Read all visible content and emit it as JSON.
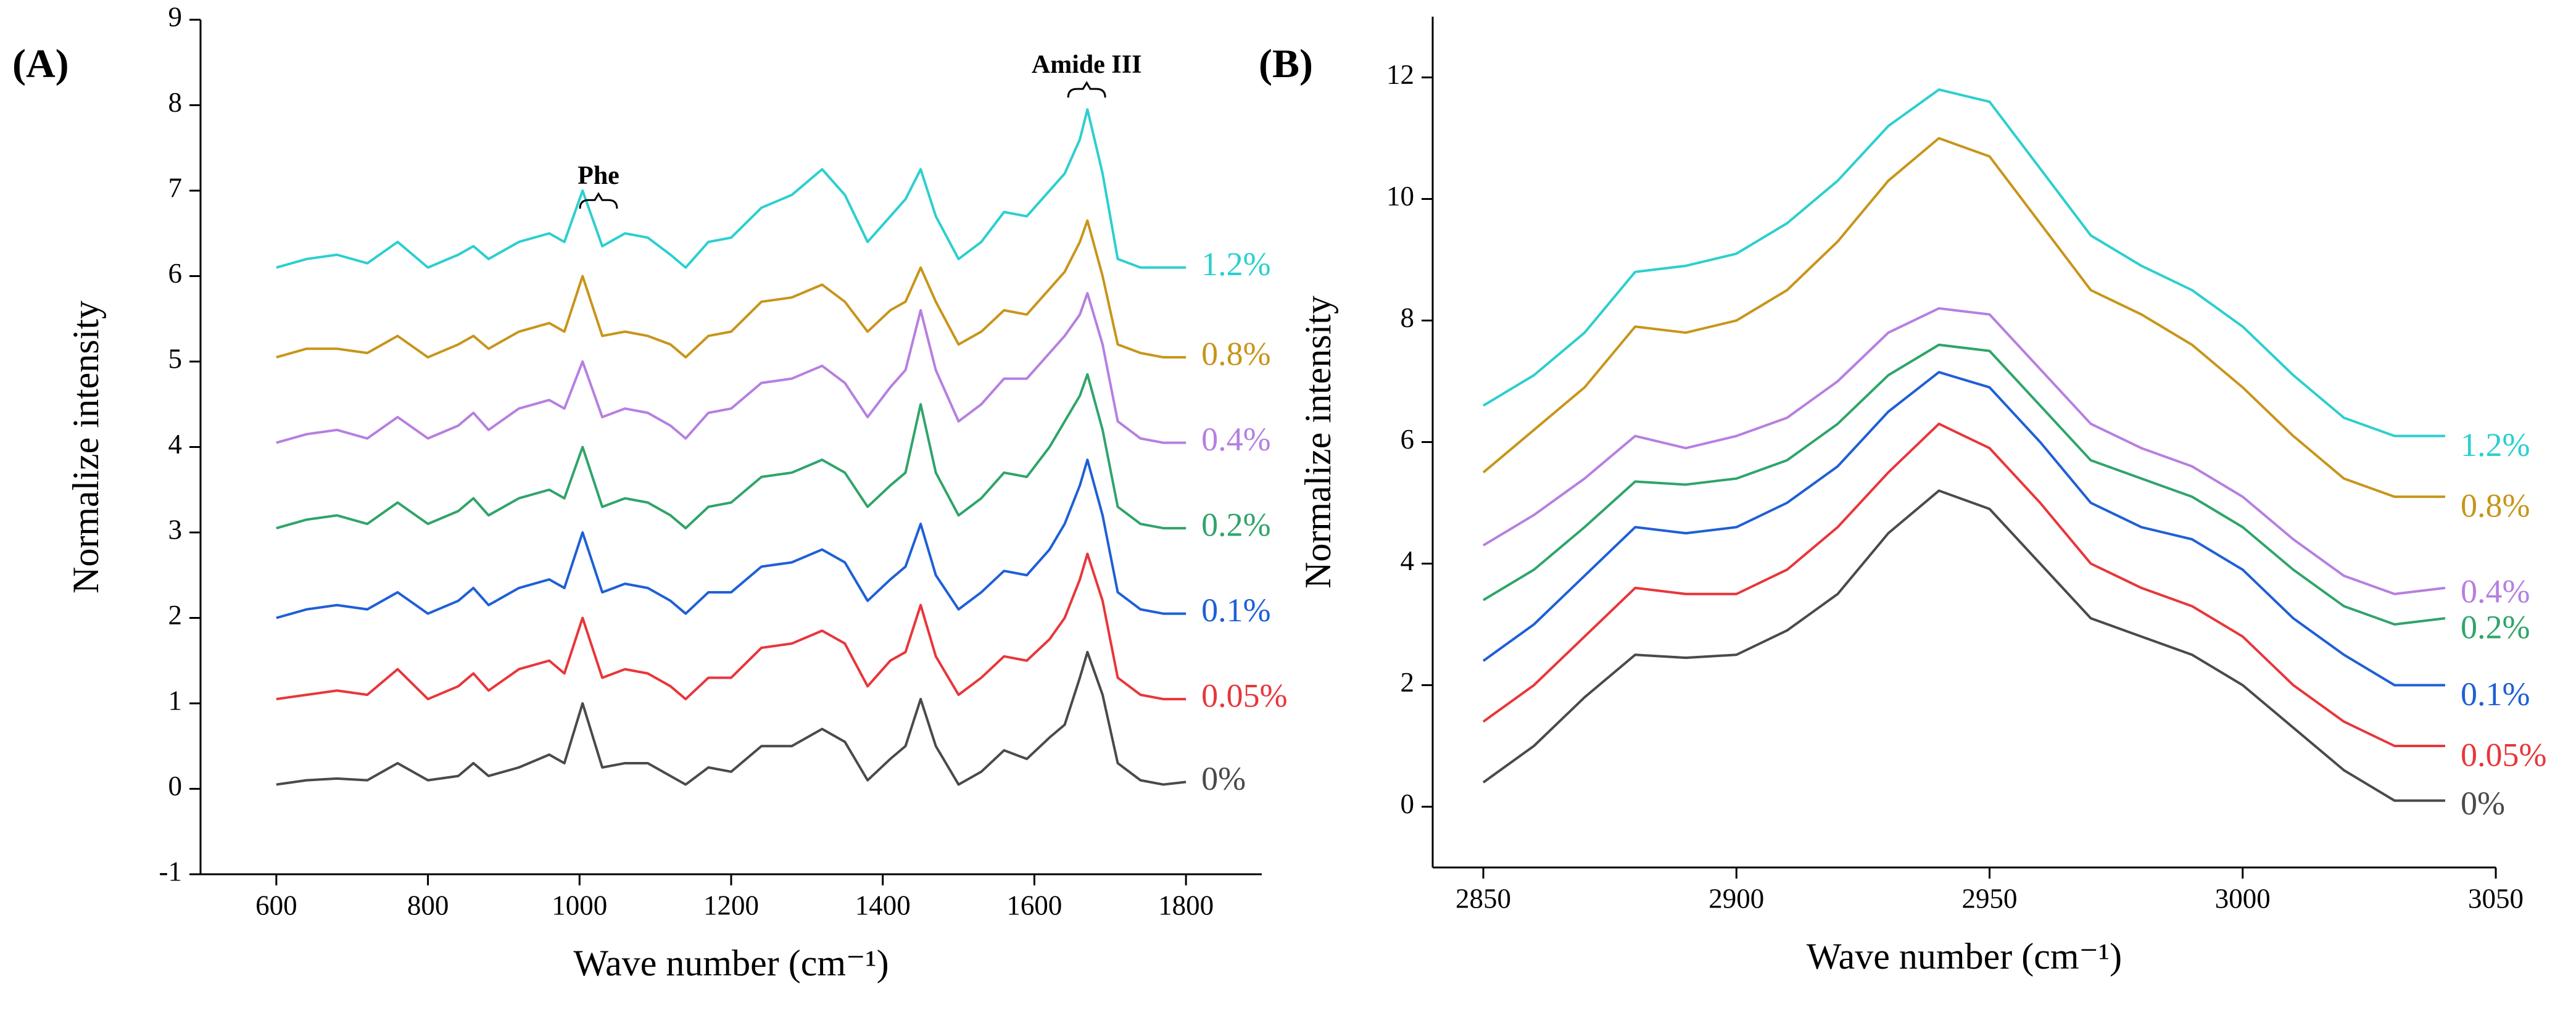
{
  "chart_data": [
    {
      "type": "line",
      "panel_label": "(A)",
      "x_label": "Wave number (cm⁻¹)",
      "y_label": "Normalize intensity",
      "annotations": [
        "Phe",
        "Amide III"
      ],
      "xlim": [
        500,
        1900
      ],
      "xticks": [
        600,
        800,
        1000,
        1200,
        1400,
        1600,
        1800
      ],
      "ylim": [
        -1,
        9
      ],
      "yticks": [
        -1,
        0,
        1,
        2,
        3,
        4,
        5,
        6,
        7,
        8,
        9
      ],
      "x": [
        600,
        640,
        680,
        720,
        760,
        800,
        840,
        860,
        880,
        920,
        960,
        980,
        1004,
        1030,
        1060,
        1090,
        1120,
        1140,
        1170,
        1200,
        1240,
        1280,
        1320,
        1350,
        1380,
        1410,
        1430,
        1450,
        1470,
        1500,
        1530,
        1560,
        1590,
        1620,
        1640,
        1660,
        1670,
        1690,
        1710,
        1740,
        1770,
        1800
      ],
      "series": [
        {
          "name": "0%",
          "color": "#4a4a4a",
          "values": [
            0.05,
            0.1,
            0.12,
            0.1,
            0.3,
            0.1,
            0.15,
            0.3,
            0.15,
            0.25,
            0.4,
            0.3,
            1.0,
            0.25,
            0.3,
            0.3,
            0.15,
            0.05,
            0.25,
            0.2,
            0.5,
            0.5,
            0.7,
            0.55,
            0.1,
            0.35,
            0.5,
            1.05,
            0.5,
            0.05,
            0.2,
            0.45,
            0.35,
            0.6,
            0.75,
            1.3,
            1.6,
            1.1,
            0.3,
            0.1,
            0.05,
            0.08
          ]
        },
        {
          "name": "0.05%",
          "color": "#e8363a",
          "values": [
            1.05,
            1.1,
            1.15,
            1.1,
            1.4,
            1.05,
            1.2,
            1.35,
            1.15,
            1.4,
            1.5,
            1.35,
            2.0,
            1.3,
            1.4,
            1.35,
            1.2,
            1.05,
            1.3,
            1.3,
            1.65,
            1.7,
            1.85,
            1.7,
            1.2,
            1.5,
            1.6,
            2.15,
            1.55,
            1.1,
            1.3,
            1.55,
            1.5,
            1.75,
            2.0,
            2.45,
            2.75,
            2.2,
            1.3,
            1.1,
            1.05,
            1.05
          ]
        },
        {
          "name": "0.1%",
          "color": "#1e5fd6",
          "values": [
            2.0,
            2.1,
            2.15,
            2.1,
            2.3,
            2.05,
            2.2,
            2.35,
            2.15,
            2.35,
            2.45,
            2.35,
            3.0,
            2.3,
            2.4,
            2.35,
            2.2,
            2.05,
            2.3,
            2.3,
            2.6,
            2.65,
            2.8,
            2.65,
            2.2,
            2.45,
            2.6,
            3.1,
            2.5,
            2.1,
            2.3,
            2.55,
            2.5,
            2.8,
            3.1,
            3.55,
            3.85,
            3.2,
            2.3,
            2.1,
            2.05,
            2.05
          ]
        },
        {
          "name": "0.2%",
          "color": "#2fa46a",
          "values": [
            3.05,
            3.15,
            3.2,
            3.1,
            3.35,
            3.1,
            3.25,
            3.4,
            3.2,
            3.4,
            3.5,
            3.4,
            4.0,
            3.3,
            3.4,
            3.35,
            3.2,
            3.05,
            3.3,
            3.35,
            3.65,
            3.7,
            3.85,
            3.7,
            3.3,
            3.55,
            3.7,
            4.5,
            3.7,
            3.2,
            3.4,
            3.7,
            3.65,
            4.0,
            4.3,
            4.6,
            4.85,
            4.2,
            3.3,
            3.1,
            3.05,
            3.05
          ]
        },
        {
          "name": "0.4%",
          "color": "#b67fe0",
          "values": [
            4.05,
            4.15,
            4.2,
            4.1,
            4.35,
            4.1,
            4.25,
            4.4,
            4.2,
            4.45,
            4.55,
            4.45,
            5.0,
            4.35,
            4.45,
            4.4,
            4.25,
            4.1,
            4.4,
            4.45,
            4.75,
            4.8,
            4.95,
            4.75,
            4.35,
            4.7,
            4.9,
            5.6,
            4.9,
            4.3,
            4.5,
            4.8,
            4.8,
            5.1,
            5.3,
            5.55,
            5.8,
            5.2,
            4.3,
            4.1,
            4.05,
            4.05
          ]
        },
        {
          "name": "0.8%",
          "color": "#c8951a",
          "values": [
            5.05,
            5.15,
            5.15,
            5.1,
            5.3,
            5.05,
            5.2,
            5.3,
            5.15,
            5.35,
            5.45,
            5.35,
            6.0,
            5.3,
            5.35,
            5.3,
            5.2,
            5.05,
            5.3,
            5.35,
            5.7,
            5.75,
            5.9,
            5.7,
            5.35,
            5.6,
            5.7,
            6.1,
            5.7,
            5.2,
            5.35,
            5.6,
            5.55,
            5.85,
            6.05,
            6.4,
            6.65,
            6.0,
            5.2,
            5.1,
            5.05,
            5.05
          ]
        },
        {
          "name": "1.2%",
          "color": "#2ccfcf",
          "values": [
            6.1,
            6.2,
            6.25,
            6.15,
            6.4,
            6.1,
            6.25,
            6.35,
            6.2,
            6.4,
            6.5,
            6.4,
            7.0,
            6.35,
            6.5,
            6.45,
            6.25,
            6.1,
            6.4,
            6.45,
            6.8,
            6.95,
            7.25,
            6.95,
            6.4,
            6.7,
            6.9,
            7.25,
            6.7,
            6.2,
            6.4,
            6.75,
            6.7,
            7.0,
            7.2,
            7.6,
            7.95,
            7.2,
            6.2,
            6.1,
            6.1,
            6.1
          ]
        }
      ]
    },
    {
      "type": "line",
      "panel_label": "(B)",
      "x_label": "Wave number (cm⁻¹)",
      "y_label": "Normalize intensity",
      "xlim": [
        2840,
        3050
      ],
      "xticks": [
        2850,
        2900,
        2950,
        3000,
        3050
      ],
      "ylim": [
        -1,
        13
      ],
      "yticks": [
        0,
        2,
        4,
        6,
        8,
        10,
        12
      ],
      "x": [
        2850,
        2860,
        2870,
        2880,
        2890,
        2900,
        2910,
        2920,
        2930,
        2940,
        2950,
        2960,
        2970,
        2980,
        2990,
        3000,
        3010,
        3020,
        3030,
        3040
      ],
      "series": [
        {
          "name": "0%",
          "color": "#4a4a4a",
          "values": [
            0.4,
            1.0,
            1.8,
            2.5,
            2.45,
            2.5,
            2.9,
            3.5,
            4.5,
            5.2,
            4.9,
            4.0,
            3.1,
            2.8,
            2.5,
            2.0,
            1.3,
            0.6,
            0.1,
            0.1
          ]
        },
        {
          "name": "0.05%",
          "color": "#e8363a",
          "values": [
            1.4,
            2.0,
            2.8,
            3.6,
            3.5,
            3.5,
            3.9,
            4.6,
            5.5,
            6.3,
            5.9,
            5.0,
            4.0,
            3.6,
            3.3,
            2.8,
            2.0,
            1.4,
            1.0,
            1.0
          ]
        },
        {
          "name": "0.1%",
          "color": "#1e5fd6",
          "values": [
            2.4,
            3.0,
            3.8,
            4.6,
            4.5,
            4.6,
            5.0,
            5.6,
            6.5,
            7.15,
            6.9,
            6.0,
            5.0,
            4.6,
            4.4,
            3.9,
            3.1,
            2.5,
            2.0,
            2.0
          ]
        },
        {
          "name": "0.2%",
          "color": "#2fa46a",
          "values": [
            3.4,
            3.9,
            4.6,
            5.35,
            5.3,
            5.4,
            5.7,
            6.3,
            7.1,
            7.6,
            7.5,
            6.6,
            5.7,
            5.4,
            5.1,
            4.6,
            3.9,
            3.3,
            3.0,
            3.1
          ]
        },
        {
          "name": "0.4%",
          "color": "#b67fe0",
          "values": [
            4.3,
            4.8,
            5.4,
            6.1,
            5.9,
            6.1,
            6.4,
            7.0,
            7.8,
            8.2,
            8.1,
            7.2,
            6.3,
            5.9,
            5.6,
            5.1,
            4.4,
            3.8,
            3.5,
            3.6
          ]
        },
        {
          "name": "0.8%",
          "color": "#c8951a",
          "values": [
            5.5,
            6.2,
            6.9,
            7.9,
            7.8,
            8.0,
            8.5,
            9.3,
            10.3,
            11.0,
            10.7,
            9.6,
            8.5,
            8.1,
            7.6,
            6.9,
            6.1,
            5.4,
            5.1,
            5.1
          ]
        },
        {
          "name": "1.2%",
          "color": "#2ccfcf",
          "values": [
            6.6,
            7.1,
            7.8,
            8.8,
            8.9,
            9.1,
            9.6,
            10.3,
            11.2,
            11.8,
            11.6,
            10.5,
            9.4,
            8.9,
            8.5,
            7.9,
            7.1,
            6.4,
            6.1,
            6.1
          ]
        }
      ]
    }
  ]
}
